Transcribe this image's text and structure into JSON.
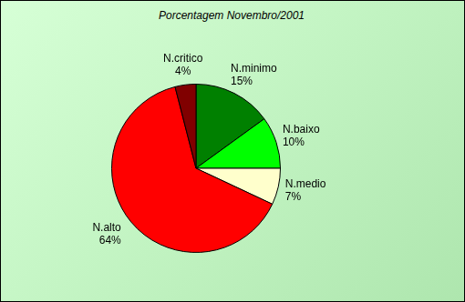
{
  "chart_data": {
    "type": "pie",
    "title": "Porcentagem Novembro/2001",
    "categories": [
      "N.minimo",
      "N.baixo",
      "N.medio",
      "N.alto",
      "N.critico"
    ],
    "values": [
      15,
      10,
      7,
      64,
      4
    ],
    "value_labels": [
      "15%",
      "10%",
      "7%",
      "64%",
      "4%"
    ],
    "colors": [
      "#008000",
      "#00ff00",
      "#ffffcc",
      "#ff0000",
      "#800000"
    ],
    "data_labels": true
  }
}
